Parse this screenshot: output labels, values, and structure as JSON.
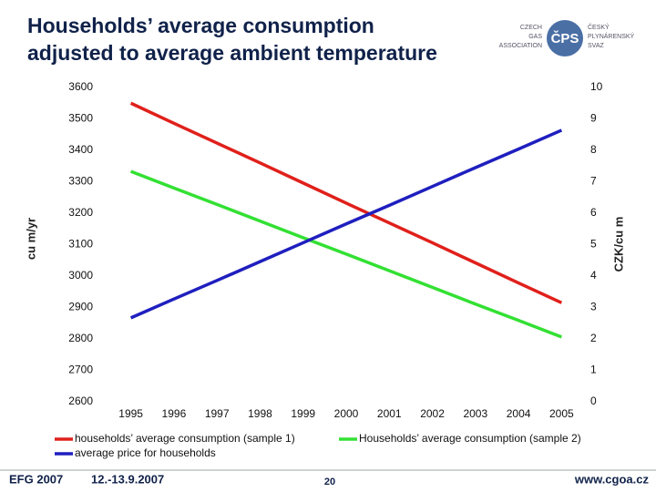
{
  "slide": {
    "title_line1": "Households’ average consumption",
    "title_line2": "adjusted to average ambient temperature",
    "logo_mark": "ČPS",
    "logo_left": [
      "CZECH",
      "GAS",
      "ASSOCIATION"
    ],
    "logo_right": [
      "ČESKÝ",
      "PLYNÁRENSKÝ",
      "SVAZ"
    ],
    "footer_event": "EFG 2007",
    "footer_date": "12.-13.9.2007",
    "page_number": "20",
    "footer_url": "www.cgoa.cz"
  },
  "chart_data": {
    "type": "line",
    "categories": [
      "1995",
      "1996",
      "1997",
      "1998",
      "1999",
      "2000",
      "2001",
      "2002",
      "2003",
      "2004",
      "2005"
    ],
    "y_label": "cu m/yr",
    "y2_label": "CZK/cu m",
    "ylim": [
      2600,
      3600
    ],
    "yticks": [
      2600,
      2700,
      2800,
      2900,
      3000,
      3100,
      3200,
      3300,
      3400,
      3500,
      3600
    ],
    "y2lim": [
      0,
      10
    ],
    "y2ticks": [
      0,
      1,
      2,
      3,
      4,
      5,
      6,
      7,
      8,
      9,
      10
    ],
    "series": [
      {
        "name": "households’ average consumption (sample 1)",
        "color": "#e0201b",
        "values": [
          3550,
          3486,
          3423,
          3360,
          3296,
          3232,
          3169,
          3106,
          3042,
          2978,
          2915
        ]
      },
      {
        "name": "Households’ average consumption (sample 2)",
        "color": "#33e033",
        "values": [
          3333,
          3280,
          3228,
          3175,
          3122,
          3070,
          3017,
          2964,
          2911,
          2859,
          2806
        ]
      },
      {
        "name": "average price for households",
        "color": "#1f1fbf",
        "axis": "y2",
        "values": [
          2.67,
          3.27,
          3.86,
          4.46,
          5.06,
          5.66,
          6.25,
          6.85,
          7.45,
          8.04,
          8.64
        ]
      }
    ]
  }
}
